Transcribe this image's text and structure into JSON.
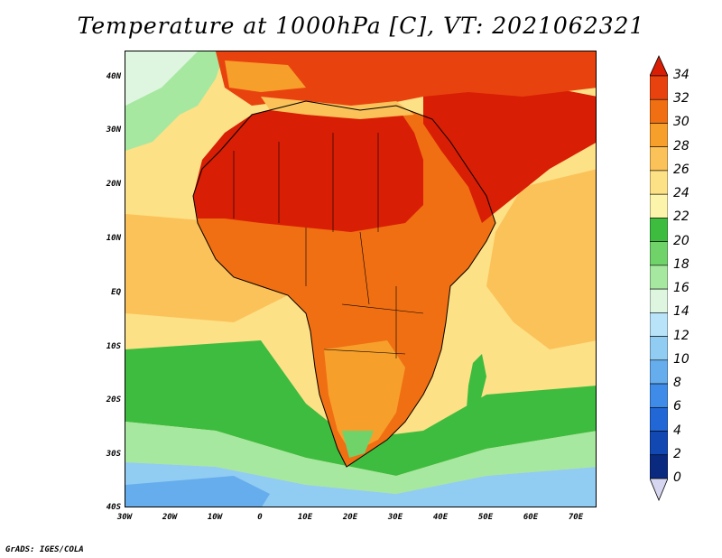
{
  "title": "Temperature at 1000hPa [C], VT: 2021062321",
  "credit": "GrADS: IGES/COLA",
  "map": {
    "lat_labels": [
      "40N",
      "30N",
      "20N",
      "10N",
      "EQ",
      "10S",
      "20S",
      "30S",
      "40S"
    ],
    "lon_labels": [
      "30W",
      "20W",
      "10W",
      "0",
      "10E",
      "20E",
      "30E",
      "40E",
      "50E",
      "60E",
      "70E"
    ],
    "ocean_color": "#f5cf73",
    "land_color": "#ea8a2b"
  },
  "colorbar": {
    "labels": [
      "34",
      "32",
      "30",
      "28",
      "26",
      "24",
      "22",
      "20",
      "18",
      "16",
      "14",
      "12",
      "10",
      "8",
      "6",
      "4",
      "2",
      "0"
    ],
    "colors": [
      "#d81e05",
      "#e8430e",
      "#f06f12",
      "#f79f2b",
      "#fbc25a",
      "#fde186",
      "#fcf4ab",
      "#3dbc3f",
      "#6fd36a",
      "#a6e8a0",
      "#def6e0",
      "#b8e3f8",
      "#91ccf3",
      "#66aded",
      "#3f8ce8",
      "#2167d6",
      "#1248b2",
      "#0a2a80",
      "#d6d6f0"
    ]
  }
}
